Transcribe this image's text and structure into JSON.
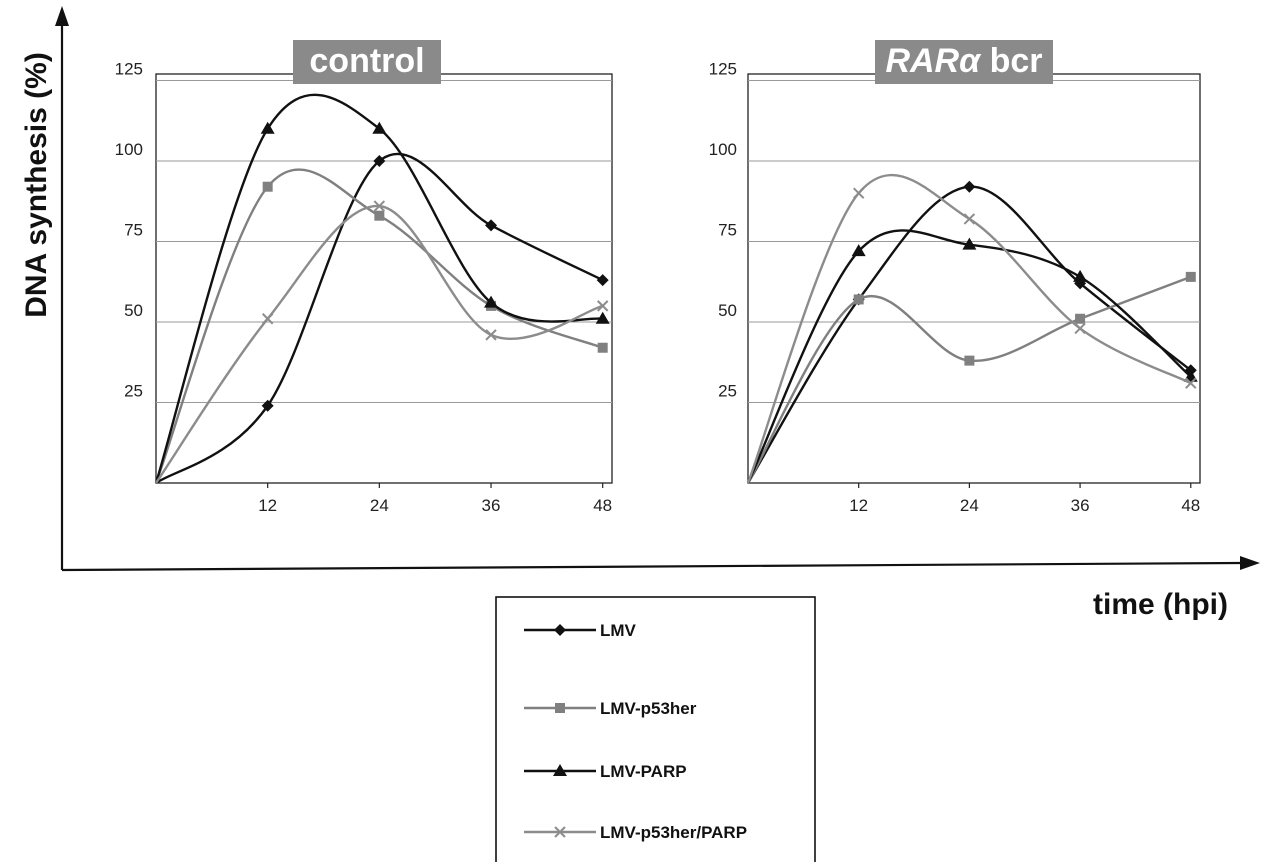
{
  "figure": {
    "ylabel": "DNA synthesis (%)",
    "xlabel": "time (hpi)"
  },
  "legend": [
    {
      "name": "LMV",
      "color": "#111111",
      "marker": "diamond"
    },
    {
      "name": "LMV-p53her",
      "color": "#808080",
      "marker": "square"
    },
    {
      "name": "LMV-PARP",
      "color": "#111111",
      "marker": "triangle"
    },
    {
      "name": "LMV-p53her/PARP",
      "color": "#8c8c8c",
      "marker": "x"
    }
  ],
  "chart_data": [
    {
      "type": "line",
      "title": "control",
      "title_parts": [
        {
          "text": "control",
          "italic": false
        }
      ],
      "x": [
        0,
        12,
        24,
        36,
        48
      ],
      "xticks": [
        12,
        24,
        36,
        48
      ],
      "yticks": [
        25,
        50,
        75,
        100,
        125
      ],
      "xlim": [
        0,
        49
      ],
      "ylim": [
        0,
        127
      ],
      "grid": true,
      "series": [
        {
          "name": "LMV",
          "values": [
            0,
            24,
            100,
            80,
            63
          ]
        },
        {
          "name": "LMV-p53her",
          "values": [
            0,
            92,
            83,
            55,
            42
          ]
        },
        {
          "name": "LMV-PARP",
          "values": [
            0,
            110,
            110,
            56,
            51
          ]
        },
        {
          "name": "LMV-p53her/PARP",
          "values": [
            0,
            51,
            86,
            46,
            55
          ]
        }
      ]
    },
    {
      "type": "line",
      "title": "RARα bcr",
      "title_parts": [
        {
          "text": "RARα",
          "italic": true
        },
        {
          "text": " bcr",
          "italic": false
        }
      ],
      "x": [
        0,
        12,
        24,
        36,
        48
      ],
      "xticks": [
        12,
        24,
        36,
        48
      ],
      "yticks": [
        25,
        50,
        75,
        100,
        125
      ],
      "xlim": [
        0,
        49
      ],
      "ylim": [
        0,
        127
      ],
      "grid": true,
      "series": [
        {
          "name": "LMV",
          "values": [
            0,
            57,
            92,
            62,
            35
          ]
        },
        {
          "name": "LMV-p53her",
          "values": [
            0,
            57,
            38,
            51,
            64
          ]
        },
        {
          "name": "LMV-PARP",
          "values": [
            0,
            72,
            74,
            64,
            33
          ]
        },
        {
          "name": "LMV-p53her/PARP",
          "values": [
            0,
            90,
            82,
            48,
            31
          ]
        }
      ]
    }
  ]
}
